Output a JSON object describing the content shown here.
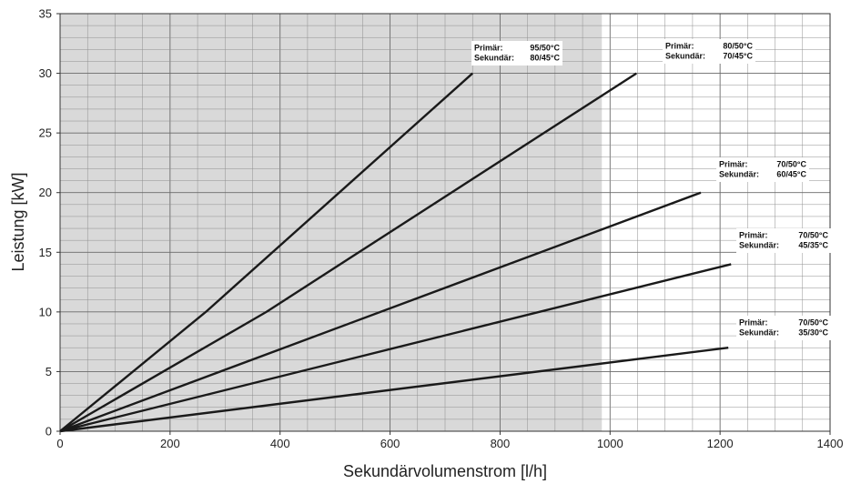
{
  "chart_data": {
    "type": "line",
    "xlabel": "Sekundärvolumenstrom [l/h]",
    "ylabel": "Leistung [kW]",
    "xlim": [
      0,
      1400
    ],
    "ylim": [
      0,
      35
    ],
    "x_ticks": [
      0,
      200,
      400,
      600,
      800,
      1000,
      1200,
      1400
    ],
    "y_ticks": [
      0,
      5,
      10,
      15,
      20,
      25,
      30,
      35
    ],
    "x_minor_step": 50,
    "y_minor_step": 1,
    "shaded_region": {
      "x": [
        0,
        985
      ],
      "color": "#d9d9d9"
    },
    "grid": true,
    "series": [
      {
        "x": [
          0,
          265,
          750
        ],
        "y": [
          0,
          10,
          30
        ],
        "annotation": {
          "primary_label": "Primär:",
          "primary_value": "95/50°C",
          "secondary_label": "Sekundär:",
          "secondary_value": "80/45°C"
        }
      },
      {
        "x": [
          0,
          375,
          1048
        ],
        "y": [
          0,
          10,
          30
        ],
        "annotation": {
          "primary_label": "Primär:",
          "primary_value": "80/50°C",
          "secondary_label": "Sekundär:",
          "secondary_value": "70/45°C"
        }
      },
      {
        "x": [
          0,
          1165
        ],
        "y": [
          0,
          20
        ],
        "annotation": {
          "primary_label": "Primär:",
          "primary_value": "70/50°C",
          "secondary_label": "Sekundär:",
          "secondary_value": "60/45°C"
        }
      },
      {
        "x": [
          0,
          1220
        ],
        "y": [
          0,
          14
        ],
        "annotation": {
          "primary_label": "Primär:",
          "primary_value": "70/50°C",
          "secondary_label": "Sekundär:",
          "secondary_value": "45/35°C"
        }
      },
      {
        "x": [
          0,
          1215
        ],
        "y": [
          0,
          7
        ],
        "annotation": {
          "primary_label": "Primär:",
          "primary_value": "70/50°C",
          "secondary_label": "Sekundär:",
          "secondary_value": "35/30°C"
        }
      }
    ]
  }
}
